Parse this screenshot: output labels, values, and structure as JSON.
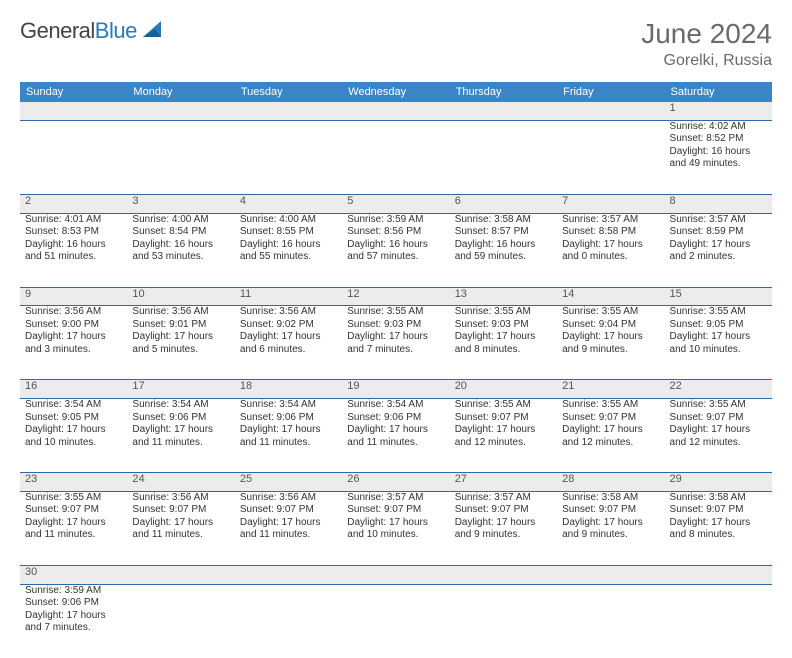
{
  "brand": {
    "word1": "General",
    "word2": "Blue"
  },
  "title": "June 2024",
  "location": "Gorelki, Russia",
  "colors": {
    "header_bg": "#3a85c6",
    "header_text": "#ffffff",
    "daynum_bg": "#ececec",
    "row_divider": "#2a6aa8",
    "title_color": "#6a6a6a",
    "brand_gray": "#444444",
    "brand_blue": "#2a7ab9"
  },
  "day_headers": [
    "Sunday",
    "Monday",
    "Tuesday",
    "Wednesday",
    "Thursday",
    "Friday",
    "Saturday"
  ],
  "weeks": [
    [
      {
        "n": "",
        "lines": []
      },
      {
        "n": "",
        "lines": []
      },
      {
        "n": "",
        "lines": []
      },
      {
        "n": "",
        "lines": []
      },
      {
        "n": "",
        "lines": []
      },
      {
        "n": "",
        "lines": []
      },
      {
        "n": "1",
        "lines": [
          "Sunrise: 4:02 AM",
          "Sunset: 8:52 PM",
          "Daylight: 16 hours",
          "and 49 minutes."
        ]
      }
    ],
    [
      {
        "n": "2",
        "lines": [
          "Sunrise: 4:01 AM",
          "Sunset: 8:53 PM",
          "Daylight: 16 hours",
          "and 51 minutes."
        ]
      },
      {
        "n": "3",
        "lines": [
          "Sunrise: 4:00 AM",
          "Sunset: 8:54 PM",
          "Daylight: 16 hours",
          "and 53 minutes."
        ]
      },
      {
        "n": "4",
        "lines": [
          "Sunrise: 4:00 AM",
          "Sunset: 8:55 PM",
          "Daylight: 16 hours",
          "and 55 minutes."
        ]
      },
      {
        "n": "5",
        "lines": [
          "Sunrise: 3:59 AM",
          "Sunset: 8:56 PM",
          "Daylight: 16 hours",
          "and 57 minutes."
        ]
      },
      {
        "n": "6",
        "lines": [
          "Sunrise: 3:58 AM",
          "Sunset: 8:57 PM",
          "Daylight: 16 hours",
          "and 59 minutes."
        ]
      },
      {
        "n": "7",
        "lines": [
          "Sunrise: 3:57 AM",
          "Sunset: 8:58 PM",
          "Daylight: 17 hours",
          "and 0 minutes."
        ]
      },
      {
        "n": "8",
        "lines": [
          "Sunrise: 3:57 AM",
          "Sunset: 8:59 PM",
          "Daylight: 17 hours",
          "and 2 minutes."
        ]
      }
    ],
    [
      {
        "n": "9",
        "lines": [
          "Sunrise: 3:56 AM",
          "Sunset: 9:00 PM",
          "Daylight: 17 hours",
          "and 3 minutes."
        ]
      },
      {
        "n": "10",
        "lines": [
          "Sunrise: 3:56 AM",
          "Sunset: 9:01 PM",
          "Daylight: 17 hours",
          "and 5 minutes."
        ]
      },
      {
        "n": "11",
        "lines": [
          "Sunrise: 3:56 AM",
          "Sunset: 9:02 PM",
          "Daylight: 17 hours",
          "and 6 minutes."
        ]
      },
      {
        "n": "12",
        "lines": [
          "Sunrise: 3:55 AM",
          "Sunset: 9:03 PM",
          "Daylight: 17 hours",
          "and 7 minutes."
        ]
      },
      {
        "n": "13",
        "lines": [
          "Sunrise: 3:55 AM",
          "Sunset: 9:03 PM",
          "Daylight: 17 hours",
          "and 8 minutes."
        ]
      },
      {
        "n": "14",
        "lines": [
          "Sunrise: 3:55 AM",
          "Sunset: 9:04 PM",
          "Daylight: 17 hours",
          "and 9 minutes."
        ]
      },
      {
        "n": "15",
        "lines": [
          "Sunrise: 3:55 AM",
          "Sunset: 9:05 PM",
          "Daylight: 17 hours",
          "and 10 minutes."
        ]
      }
    ],
    [
      {
        "n": "16",
        "lines": [
          "Sunrise: 3:54 AM",
          "Sunset: 9:05 PM",
          "Daylight: 17 hours",
          "and 10 minutes."
        ]
      },
      {
        "n": "17",
        "lines": [
          "Sunrise: 3:54 AM",
          "Sunset: 9:06 PM",
          "Daylight: 17 hours",
          "and 11 minutes."
        ]
      },
      {
        "n": "18",
        "lines": [
          "Sunrise: 3:54 AM",
          "Sunset: 9:06 PM",
          "Daylight: 17 hours",
          "and 11 minutes."
        ]
      },
      {
        "n": "19",
        "lines": [
          "Sunrise: 3:54 AM",
          "Sunset: 9:06 PM",
          "Daylight: 17 hours",
          "and 11 minutes."
        ]
      },
      {
        "n": "20",
        "lines": [
          "Sunrise: 3:55 AM",
          "Sunset: 9:07 PM",
          "Daylight: 17 hours",
          "and 12 minutes."
        ]
      },
      {
        "n": "21",
        "lines": [
          "Sunrise: 3:55 AM",
          "Sunset: 9:07 PM",
          "Daylight: 17 hours",
          "and 12 minutes."
        ]
      },
      {
        "n": "22",
        "lines": [
          "Sunrise: 3:55 AM",
          "Sunset: 9:07 PM",
          "Daylight: 17 hours",
          "and 12 minutes."
        ]
      }
    ],
    [
      {
        "n": "23",
        "lines": [
          "Sunrise: 3:55 AM",
          "Sunset: 9:07 PM",
          "Daylight: 17 hours",
          "and 11 minutes."
        ]
      },
      {
        "n": "24",
        "lines": [
          "Sunrise: 3:56 AM",
          "Sunset: 9:07 PM",
          "Daylight: 17 hours",
          "and 11 minutes."
        ]
      },
      {
        "n": "25",
        "lines": [
          "Sunrise: 3:56 AM",
          "Sunset: 9:07 PM",
          "Daylight: 17 hours",
          "and 11 minutes."
        ]
      },
      {
        "n": "26",
        "lines": [
          "Sunrise: 3:57 AM",
          "Sunset: 9:07 PM",
          "Daylight: 17 hours",
          "and 10 minutes."
        ]
      },
      {
        "n": "27",
        "lines": [
          "Sunrise: 3:57 AM",
          "Sunset: 9:07 PM",
          "Daylight: 17 hours",
          "and 9 minutes."
        ]
      },
      {
        "n": "28",
        "lines": [
          "Sunrise: 3:58 AM",
          "Sunset: 9:07 PM",
          "Daylight: 17 hours",
          "and 9 minutes."
        ]
      },
      {
        "n": "29",
        "lines": [
          "Sunrise: 3:58 AM",
          "Sunset: 9:07 PM",
          "Daylight: 17 hours",
          "and 8 minutes."
        ]
      }
    ],
    [
      {
        "n": "30",
        "lines": [
          "Sunrise: 3:59 AM",
          "Sunset: 9:06 PM",
          "Daylight: 17 hours",
          "and 7 minutes."
        ]
      },
      {
        "n": "",
        "lines": []
      },
      {
        "n": "",
        "lines": []
      },
      {
        "n": "",
        "lines": []
      },
      {
        "n": "",
        "lines": []
      },
      {
        "n": "",
        "lines": []
      },
      {
        "n": "",
        "lines": []
      }
    ]
  ]
}
